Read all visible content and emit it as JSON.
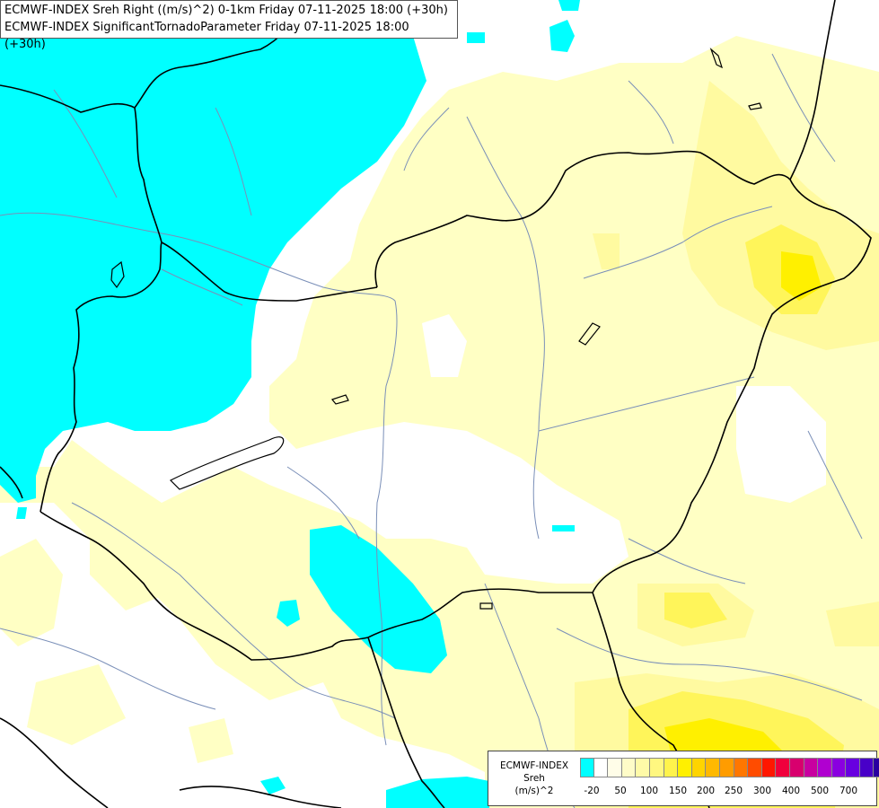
{
  "header": {
    "line1": "ECMWF-INDEX Sreh Right ((m/s)^2) 0-1km Friday 07-11-2025 18:00 (+30h)",
    "line2": "ECMWF-INDEX SignificantTornadoParameter Friday 07-11-2025 18:00 (+30h)"
  },
  "legend": {
    "title_lines": [
      "ECMWF-INDEX",
      "Sreh",
      "(m/s)^2"
    ],
    "colors": [
      "#00ffff",
      "#ffffff",
      "#fffde8",
      "#fffcc8",
      "#fffaa8",
      "#fff780",
      "#fff34c",
      "#fff000",
      "#ffd400",
      "#ffb900",
      "#ff9c00",
      "#ff7700",
      "#ff4c00",
      "#ff1700",
      "#f0003c",
      "#d8006e",
      "#c800a0",
      "#b000d0",
      "#8a00e0",
      "#6800e0",
      "#4800c8",
      "#2a00a0",
      "#000070"
    ],
    "ticks": [
      "-20",
      "50",
      "100",
      "150",
      "200",
      "250",
      "300",
      "400",
      "500",
      "700"
    ]
  },
  "map": {
    "colors": {
      "cyan": "#00ffff",
      "white": "#ffffff",
      "pale_yellow": "#ffffc4",
      "light_yellow": "#fffaa0",
      "yellow": "#fff55a",
      "bright_yellow": "#fff000",
      "border": "#000000",
      "river": "#7a8fb8"
    }
  }
}
